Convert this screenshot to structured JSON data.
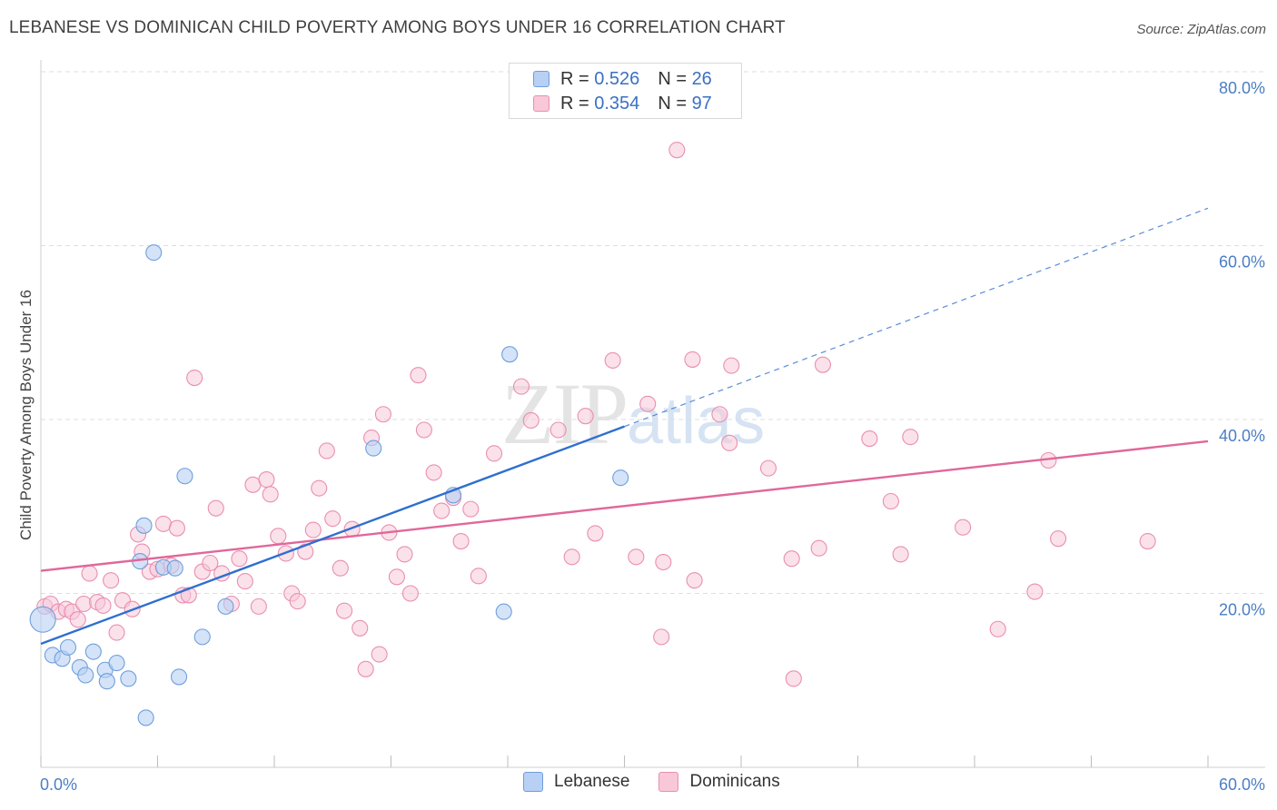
{
  "header": {
    "title": "LEBANESE VS DOMINICAN CHILD POVERTY AMONG BOYS UNDER 16 CORRELATION CHART",
    "source": "Source: ZipAtlas.com"
  },
  "watermark": {
    "zip": "ZIP",
    "atlas": "atlas"
  },
  "legend": {
    "rows": [
      {
        "r_label": "R = ",
        "r_value": "0.526",
        "n_label": "N = ",
        "n_value": "26"
      },
      {
        "r_label": "R = ",
        "r_value": "0.354",
        "n_label": "N = ",
        "n_value": "97"
      }
    ],
    "bottom": [
      "Lebanese",
      "Dominicans"
    ]
  },
  "colors": {
    "lebanese_fill": "#b8d0f4",
    "lebanese_stroke": "#6f9fdc",
    "lebanese_line": "#2f6fcf",
    "dominican_fill": "#f8c8d8",
    "dominican_stroke": "#e98fb0",
    "dominican_line": "#e0679a",
    "tick_text": "#4a7ec6"
  },
  "chart_data": {
    "type": "scatter",
    "title": "LEBANESE VS DOMINICAN CHILD POVERTY AMONG BOYS UNDER 16 CORRELATION CHART",
    "xlabel": "",
    "ylabel": "Child Poverty Among Boys Under 16",
    "xlim": [
      0,
      60
    ],
    "ylim": [
      0,
      82
    ],
    "x_tick_labels": [
      "0.0%",
      "60.0%"
    ],
    "y_ticks": [
      20,
      40,
      60,
      80
    ],
    "y_tick_labels": [
      "20.0%",
      "40.0%",
      "60.0%",
      "80.0%"
    ],
    "grid": "horizontal dashed",
    "legend_position": "top-center",
    "series": [
      {
        "name": "Lebanese",
        "r": 0.526,
        "n": 26,
        "trend": {
          "x": [
            0,
            30
          ],
          "y": [
            14.2,
            39.2
          ],
          "dashed_extension": {
            "x": [
              30,
              60
            ],
            "y": [
              39.2,
              64.3
            ]
          }
        },
        "points": [
          [
            0.1,
            17.0
          ],
          [
            0.6,
            12.9
          ],
          [
            1.1,
            12.5
          ],
          [
            1.4,
            13.8
          ],
          [
            2.0,
            11.5
          ],
          [
            2.3,
            10.6
          ],
          [
            2.7,
            13.3
          ],
          [
            3.3,
            11.2
          ],
          [
            3.4,
            9.9
          ],
          [
            3.9,
            12.0
          ],
          [
            4.5,
            10.2
          ],
          [
            5.1,
            23.7
          ],
          [
            5.3,
            27.8
          ],
          [
            5.4,
            5.7
          ],
          [
            5.8,
            59.2
          ],
          [
            6.3,
            23.0
          ],
          [
            6.9,
            22.9
          ],
          [
            7.1,
            10.4
          ],
          [
            7.4,
            33.5
          ],
          [
            8.3,
            15.0
          ],
          [
            9.5,
            18.5
          ],
          [
            17.1,
            36.7
          ],
          [
            21.2,
            31.3
          ],
          [
            23.8,
            17.9
          ],
          [
            24.1,
            47.5
          ],
          [
            29.8,
            33.3
          ]
        ]
      },
      {
        "name": "Dominicans",
        "r": 0.354,
        "n": 97,
        "trend": {
          "x": [
            0,
            60
          ],
          "y": [
            22.6,
            37.5
          ]
        },
        "points": [
          [
            0.2,
            18.5
          ],
          [
            0.5,
            18.8
          ],
          [
            0.9,
            17.9
          ],
          [
            1.3,
            18.2
          ],
          [
            1.6,
            17.9
          ],
          [
            1.9,
            17.0
          ],
          [
            2.2,
            18.8
          ],
          [
            2.5,
            22.3
          ],
          [
            2.9,
            19.0
          ],
          [
            3.2,
            18.6
          ],
          [
            3.6,
            21.5
          ],
          [
            3.9,
            15.5
          ],
          [
            4.2,
            19.2
          ],
          [
            4.7,
            18.2
          ],
          [
            5.0,
            26.8
          ],
          [
            5.2,
            24.8
          ],
          [
            5.6,
            22.5
          ],
          [
            6.0,
            22.8
          ],
          [
            6.3,
            28.0
          ],
          [
            6.7,
            23.2
          ],
          [
            7.0,
            27.5
          ],
          [
            7.3,
            19.8
          ],
          [
            7.6,
            19.8
          ],
          [
            7.9,
            44.8
          ],
          [
            8.3,
            22.5
          ],
          [
            8.7,
            23.5
          ],
          [
            9.0,
            29.8
          ],
          [
            9.3,
            22.3
          ],
          [
            9.8,
            18.8
          ],
          [
            10.2,
            24.0
          ],
          [
            10.5,
            21.4
          ],
          [
            10.9,
            32.5
          ],
          [
            11.2,
            18.5
          ],
          [
            11.6,
            33.1
          ],
          [
            11.8,
            31.4
          ],
          [
            12.2,
            26.6
          ],
          [
            12.6,
            24.6
          ],
          [
            12.9,
            20.0
          ],
          [
            13.2,
            19.1
          ],
          [
            13.6,
            24.8
          ],
          [
            14.0,
            27.3
          ],
          [
            14.3,
            32.1
          ],
          [
            14.7,
            36.4
          ],
          [
            15.0,
            28.6
          ],
          [
            15.4,
            22.9
          ],
          [
            15.6,
            18.0
          ],
          [
            16.0,
            27.4
          ],
          [
            16.4,
            16.0
          ],
          [
            16.7,
            11.3
          ],
          [
            17.0,
            37.9
          ],
          [
            17.4,
            13.0
          ],
          [
            17.6,
            40.6
          ],
          [
            17.9,
            27.0
          ],
          [
            18.3,
            21.9
          ],
          [
            18.7,
            24.5
          ],
          [
            19.0,
            20.0
          ],
          [
            19.4,
            45.1
          ],
          [
            19.7,
            38.8
          ],
          [
            20.2,
            33.9
          ],
          [
            20.6,
            29.5
          ],
          [
            21.2,
            31.0
          ],
          [
            21.6,
            26.0
          ],
          [
            22.1,
            29.7
          ],
          [
            22.5,
            22.0
          ],
          [
            23.3,
            36.1
          ],
          [
            24.7,
            43.8
          ],
          [
            25.2,
            39.9
          ],
          [
            26.6,
            38.8
          ],
          [
            27.3,
            24.2
          ],
          [
            28.0,
            40.4
          ],
          [
            28.5,
            26.9
          ],
          [
            29.4,
            46.8
          ],
          [
            30.6,
            24.2
          ],
          [
            31.2,
            41.8
          ],
          [
            31.9,
            15.0
          ],
          [
            32.0,
            23.6
          ],
          [
            32.7,
            71.0
          ],
          [
            33.5,
            46.9
          ],
          [
            33.6,
            21.5
          ],
          [
            34.9,
            40.6
          ],
          [
            35.4,
            37.3
          ],
          [
            35.5,
            46.2
          ],
          [
            37.4,
            34.4
          ],
          [
            38.6,
            24.0
          ],
          [
            38.7,
            10.2
          ],
          [
            40.0,
            25.2
          ],
          [
            40.2,
            46.3
          ],
          [
            42.6,
            37.8
          ],
          [
            43.7,
            30.6
          ],
          [
            44.2,
            24.5
          ],
          [
            44.7,
            38.0
          ],
          [
            47.4,
            27.6
          ],
          [
            49.2,
            15.9
          ],
          [
            51.1,
            20.2
          ],
          [
            51.8,
            35.3
          ],
          [
            52.3,
            26.3
          ],
          [
            56.9,
            26.0
          ]
        ]
      }
    ]
  }
}
